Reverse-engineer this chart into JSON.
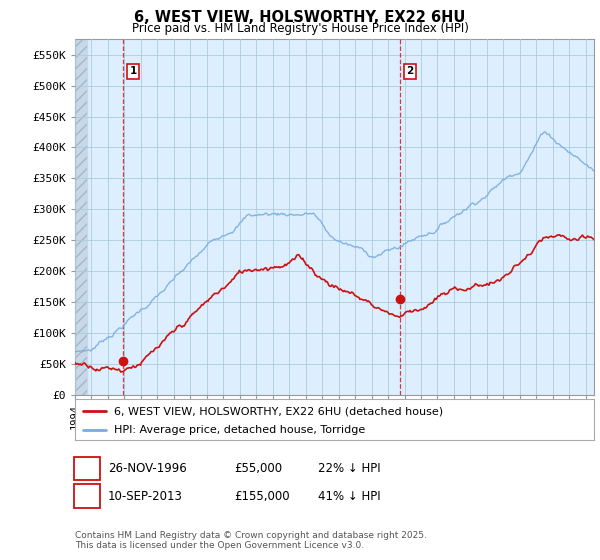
{
  "title": "6, WEST VIEW, HOLSWORTHY, EX22 6HU",
  "subtitle": "Price paid vs. HM Land Registry's House Price Index (HPI)",
  "ylabel_ticks": [
    "£0",
    "£50K",
    "£100K",
    "£150K",
    "£200K",
    "£250K",
    "£300K",
    "£350K",
    "£400K",
    "£450K",
    "£500K",
    "£550K"
  ],
  "ytick_values": [
    0,
    50000,
    100000,
    150000,
    200000,
    250000,
    300000,
    350000,
    400000,
    450000,
    500000,
    550000
  ],
  "ylim": [
    0,
    575000
  ],
  "xlim_start": 1994.0,
  "xlim_end": 2025.5,
  "hpi_color": "#7aaddc",
  "price_color": "#cc1111",
  "marker1_date": 1996.9,
  "marker1_value": 55000,
  "marker2_date": 2013.7,
  "marker2_value": 155000,
  "legend_line1": "6, WEST VIEW, HOLSWORTHY, EX22 6HU (detached house)",
  "legend_line2": "HPI: Average price, detached house, Torridge",
  "copyright": "Contains HM Land Registry data © Crown copyright and database right 2025.\nThis data is licensed under the Open Government Licence v3.0.",
  "background_color": "#ffffff",
  "plot_bg_color": "#ddeeff",
  "grid_color": "#aaccdd",
  "hatch_color": "#c8d8e8"
}
